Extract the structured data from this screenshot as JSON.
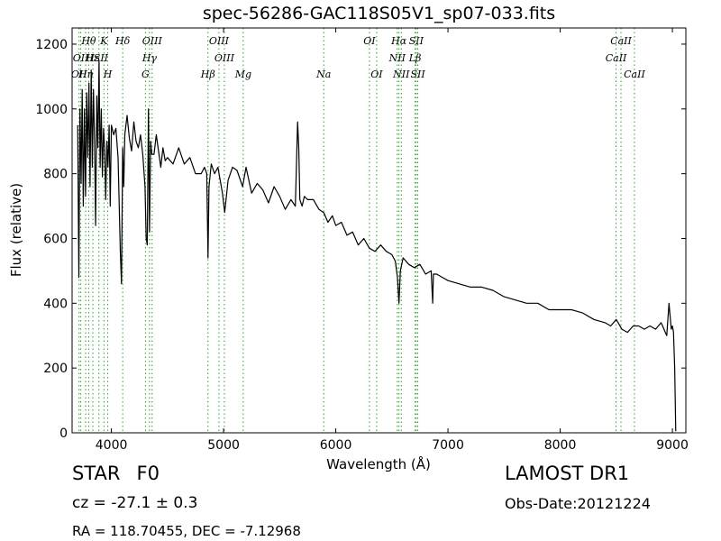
{
  "chart_data": {
    "type": "line",
    "title": "spec-56286-GAC118S05V1_sp07-033.fits",
    "xlabel": "Wavelength (Å)",
    "ylabel": "Flux (relative)",
    "xlim": [
      3650,
      9120
    ],
    "ylim": [
      0,
      1250
    ],
    "xticks": [
      4000,
      5000,
      6000,
      7000,
      8000,
      9000
    ],
    "yticks": [
      0,
      200,
      400,
      600,
      800,
      1000,
      1200
    ],
    "grid": false,
    "line_color": "#000000",
    "marker_color": "#2ca02c",
    "series": [
      {
        "x": [
          3700,
          3710,
          3720,
          3730,
          3740,
          3750,
          3760,
          3770,
          3780,
          3790,
          3800,
          3810,
          3820,
          3830,
          3840,
          3850,
          3860,
          3870,
          3880,
          3890,
          3900,
          3910,
          3920,
          3930,
          3940,
          3950,
          3960,
          3970,
          3980,
          3990,
          4000,
          4020,
          4040,
          4060,
          4080,
          4090,
          4101,
          4110,
          4120,
          4140,
          4160,
          4180,
          4200,
          4220,
          4240,
          4260,
          4280,
          4300,
          4310,
          4320,
          4330,
          4340,
          4350,
          4360,
          4380,
          4400,
          4420,
          4440,
          4460,
          4480,
          4500,
          4550,
          4600,
          4650,
          4700,
          4750,
          4800,
          4830,
          4850,
          4861,
          4870,
          4890,
          4920,
          4950,
          4990,
          5010,
          5040,
          5080,
          5120,
          5170,
          5200,
          5250,
          5300,
          5350,
          5400,
          5450,
          5500,
          5550,
          5600,
          5640,
          5660,
          5670,
          5680,
          5700,
          5720,
          5750,
          5800,
          5850,
          5893,
          5930,
          5970,
          6000,
          6050,
          6100,
          6150,
          6200,
          6250,
          6300,
          6350,
          6400,
          6450,
          6500,
          6530,
          6550,
          6563,
          6575,
          6600,
          6650,
          6700,
          6750,
          6800,
          6850,
          6864,
          6870,
          6900,
          6950,
          7000,
          7100,
          7200,
          7300,
          7400,
          7500,
          7600,
          7700,
          7800,
          7900,
          8000,
          8100,
          8200,
          8300,
          8400,
          8450,
          8500,
          8550,
          8600,
          8650,
          8700,
          8750,
          8800,
          8850,
          8900,
          8950,
          8970,
          8990,
          9000,
          9010,
          9020,
          9030
        ],
        "y": [
          950,
          480,
          1000,
          770,
          1060,
          700,
          1000,
          730,
          1050,
          850,
          1080,
          760,
          1120,
          820,
          1060,
          900,
          640,
          1040,
          880,
          1150,
          820,
          1000,
          790,
          940,
          880,
          720,
          900,
          820,
          950,
          700,
          950,
          920,
          940,
          850,
          560,
          460,
          880,
          760,
          920,
          980,
          910,
          870,
          960,
          900,
          880,
          920,
          860,
          760,
          600,
          580,
          1000,
          620,
          900,
          860,
          860,
          920,
          870,
          820,
          880,
          840,
          850,
          830,
          880,
          830,
          850,
          800,
          800,
          820,
          800,
          540,
          760,
          830,
          800,
          820,
          740,
          680,
          780,
          820,
          810,
          760,
          820,
          740,
          770,
          750,
          710,
          760,
          730,
          690,
          720,
          700,
          960,
          880,
          720,
          700,
          730,
          720,
          720,
          690,
          680,
          650,
          670,
          640,
          650,
          610,
          620,
          580,
          600,
          570,
          560,
          580,
          560,
          550,
          530,
          480,
          400,
          500,
          540,
          520,
          510,
          520,
          490,
          500,
          400,
          490,
          490,
          480,
          470,
          460,
          450,
          450,
          440,
          420,
          410,
          400,
          400,
          380,
          380,
          380,
          370,
          350,
          340,
          330,
          350,
          320,
          310,
          330,
          330,
          320,
          330,
          320,
          340,
          300,
          400,
          320,
          330,
          310,
          200,
          5
        ]
      }
    ],
    "lines": [
      {
        "label": "Hθ",
        "x": 3798,
        "row": 0
      },
      {
        "label": "K",
        "x": 3934,
        "row": 0
      },
      {
        "label": "Hδ",
        "x": 4101,
        "row": 0
      },
      {
        "label": "OIII",
        "x": 4363,
        "row": 0
      },
      {
        "label": "OIII",
        "x": 4959,
        "row": 0
      },
      {
        "label": "OI",
        "x": 6300,
        "row": 0
      },
      {
        "label": "Hα",
        "x": 6563,
        "row": 0
      },
      {
        "label": "SII",
        "x": 6717,
        "row": 0
      },
      {
        "label": "CaII",
        "x": 8542,
        "row": 0
      },
      {
        "label": "OII",
        "x": 3727,
        "row": 1
      },
      {
        "label": "Hε",
        "x": 3835,
        "row": 1
      },
      {
        "label": "ISII",
        "x": 3889,
        "row": 1
      },
      {
        "label": "Hγ",
        "x": 4340,
        "row": 1
      },
      {
        "label": "OIII",
        "x": 5007,
        "row": 1
      },
      {
        "label": "NII",
        "x": 6548,
        "row": 1
      },
      {
        "label": "Lβ",
        "x": 6707,
        "row": 1
      },
      {
        "label": "CaII",
        "x": 8498,
        "row": 1
      },
      {
        "label": "OII",
        "x": 3712,
        "row": 2
      },
      {
        "label": "Hη",
        "x": 3771,
        "row": 2
      },
      {
        "label": "H",
        "x": 3968,
        "row": 2
      },
      {
        "label": "G",
        "x": 4304,
        "row": 2
      },
      {
        "label": "Hβ",
        "x": 4861,
        "row": 2
      },
      {
        "label": "Mg",
        "x": 5175,
        "row": 2
      },
      {
        "label": "Na",
        "x": 5893,
        "row": 2
      },
      {
        "label": "OI",
        "x": 6364,
        "row": 2
      },
      {
        "label": "NII",
        "x": 6584,
        "row": 2
      },
      {
        "label": "SII",
        "x": 6731,
        "row": 2
      },
      {
        "label": "CaII",
        "x": 8662,
        "row": 2
      }
    ]
  },
  "footer": {
    "object_class": "STAR",
    "subclass": "F0",
    "cz": "cz = -27.1 ± 0.3",
    "radec": "RA = 118.70455, DEC = -7.12968",
    "survey": "LAMOST DR1",
    "obs_date": "Obs-Date:20121224"
  }
}
